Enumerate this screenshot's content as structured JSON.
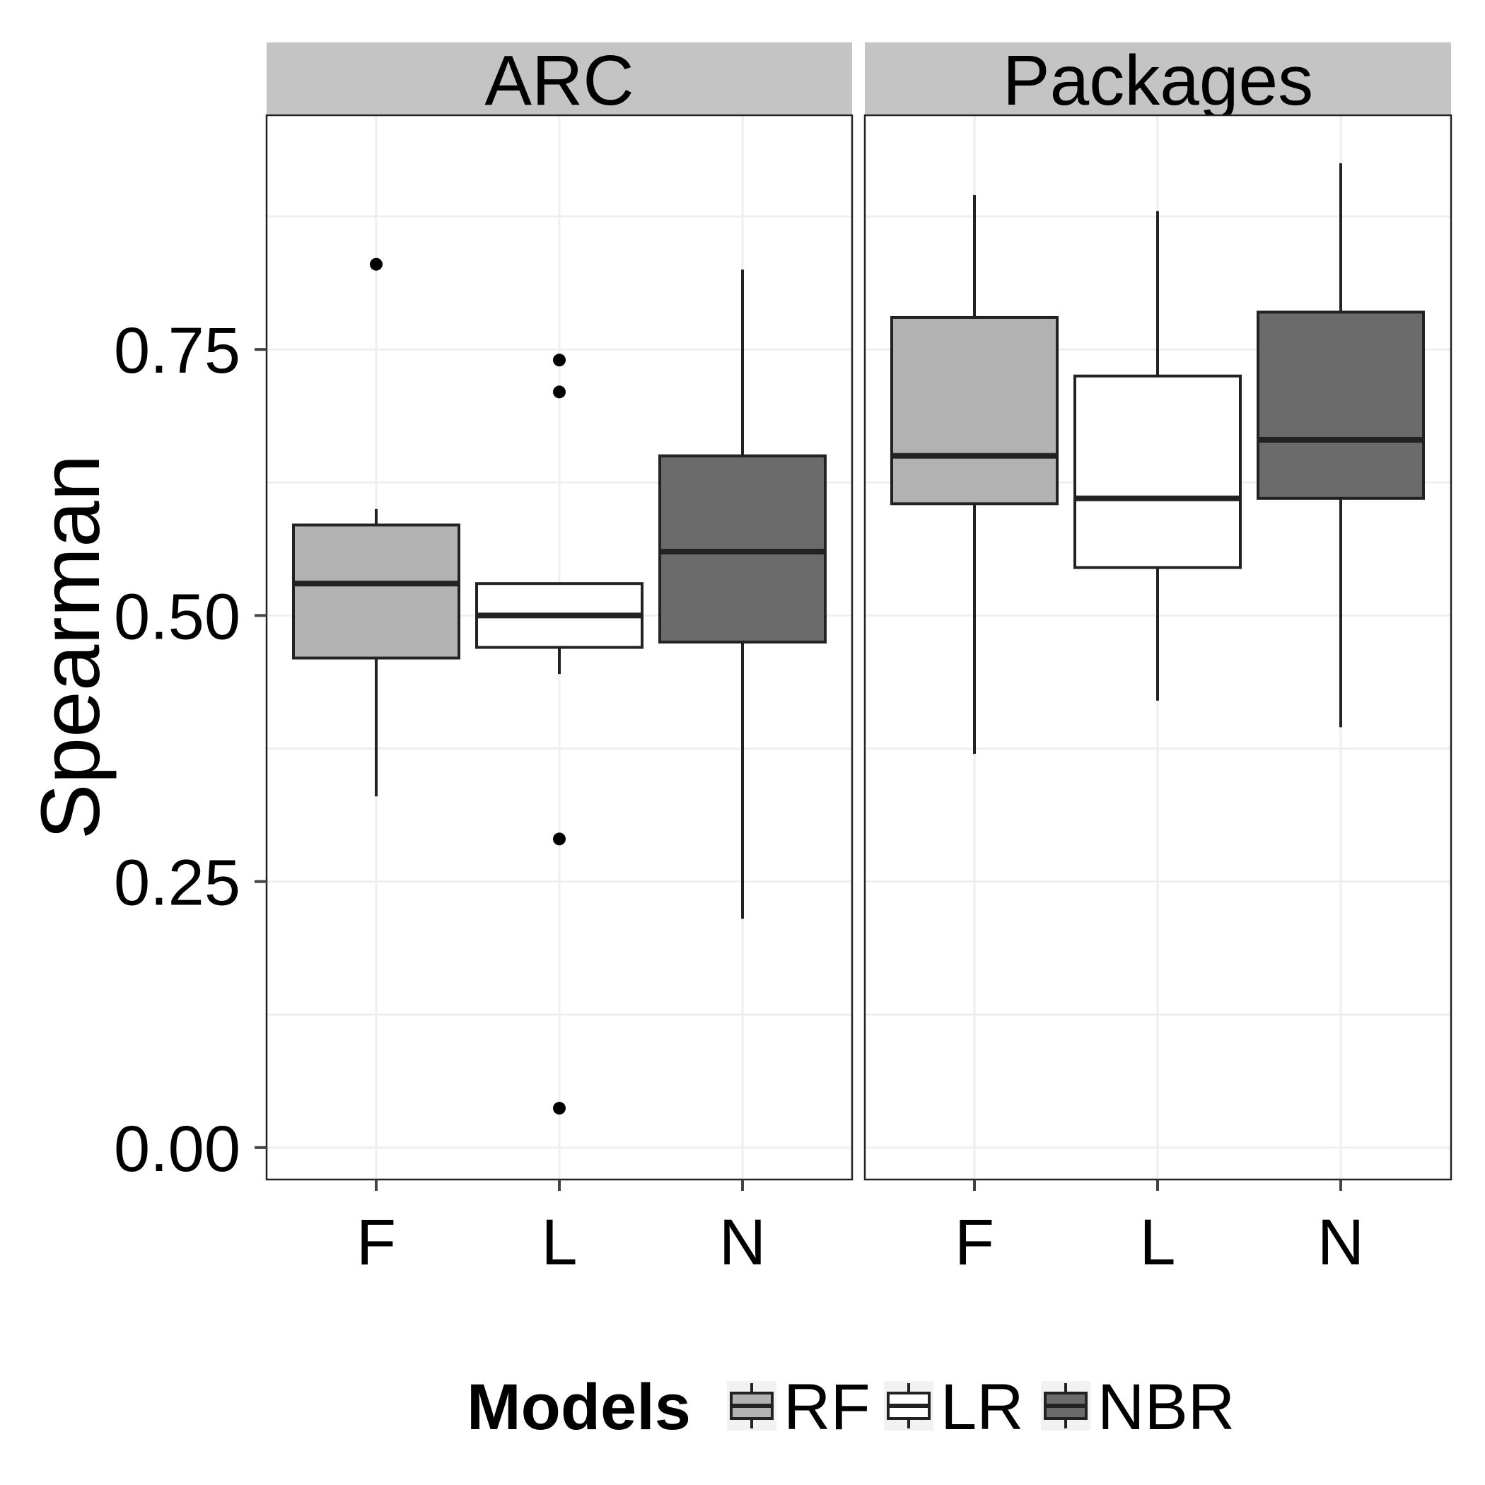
{
  "chart_data": {
    "type": "boxplot",
    "ylabel": "Spearman",
    "xlabel": "",
    "ylim": [
      -0.03,
      0.97
    ],
    "yticks": [
      0.0,
      0.25,
      0.5,
      0.75
    ],
    "ytick_labels": [
      "0.00",
      "0.25",
      "0.50",
      "0.75"
    ],
    "grid": true,
    "categories": [
      "F",
      "L",
      "N"
    ],
    "legend": {
      "title": "Models",
      "position": "bottom",
      "entries": [
        {
          "label": "RF",
          "fill": "#b2b2b2"
        },
        {
          "label": "LR",
          "fill": "#ffffff"
        },
        {
          "label": "NBR",
          "fill": "#6b6b6b"
        }
      ]
    },
    "panels": [
      {
        "title": "ARC",
        "boxes": [
          {
            "category": "F",
            "model": "RF",
            "fill": "#b2b2b2",
            "whisker_low": 0.33,
            "q1": 0.46,
            "median": 0.53,
            "q3": 0.585,
            "whisker_high": 0.6,
            "outliers": [
              0.83
            ]
          },
          {
            "category": "L",
            "model": "LR",
            "fill": "#ffffff",
            "whisker_low": 0.445,
            "q1": 0.47,
            "median": 0.5,
            "q3": 0.53,
            "whisker_high": 0.53,
            "outliers": [
              0.74,
              0.71,
              0.29,
              0.037
            ]
          },
          {
            "category": "N",
            "model": "NBR",
            "fill": "#6b6b6b",
            "whisker_low": 0.215,
            "q1": 0.475,
            "median": 0.56,
            "q3": 0.65,
            "whisker_high": 0.825,
            "outliers": []
          }
        ]
      },
      {
        "title": "Packages",
        "boxes": [
          {
            "category": "F",
            "model": "RF",
            "fill": "#b2b2b2",
            "whisker_low": 0.37,
            "q1": 0.605,
            "median": 0.65,
            "q3": 0.78,
            "whisker_high": 0.895,
            "outliers": []
          },
          {
            "category": "L",
            "model": "LR",
            "fill": "#ffffff",
            "whisker_low": 0.42,
            "q1": 0.545,
            "median": 0.61,
            "q3": 0.725,
            "whisker_high": 0.88,
            "outliers": []
          },
          {
            "category": "N",
            "model": "NBR",
            "fill": "#6b6b6b",
            "whisker_low": 0.395,
            "q1": 0.61,
            "median": 0.665,
            "q3": 0.785,
            "whisker_high": 0.925,
            "outliers": []
          }
        ]
      }
    ]
  }
}
